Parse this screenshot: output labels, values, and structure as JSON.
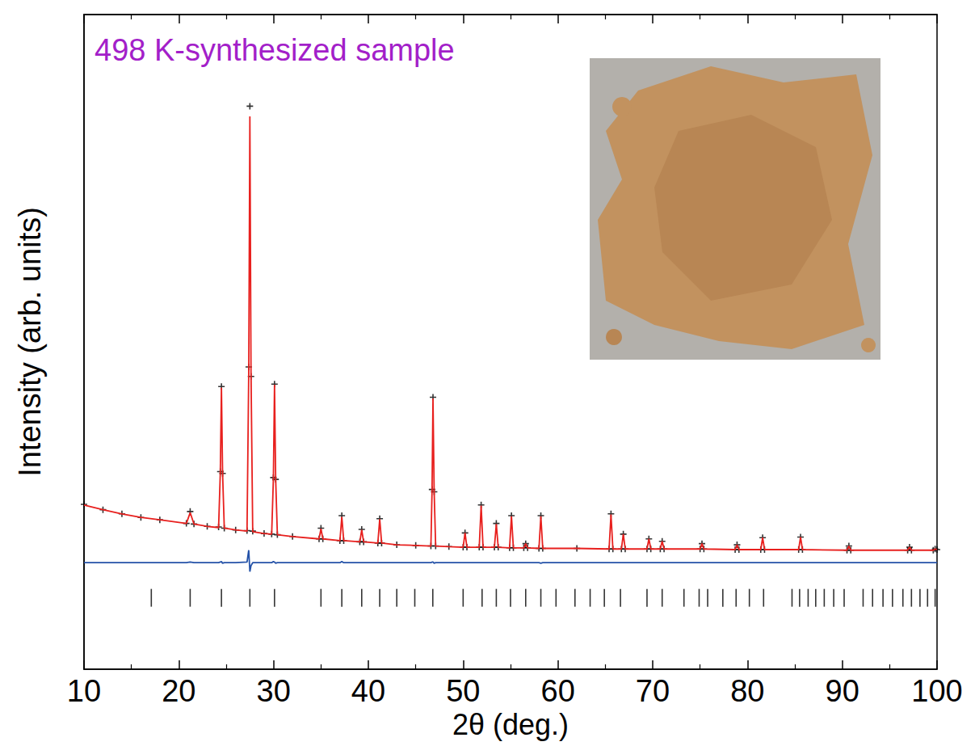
{
  "chart_data": {
    "type": "line",
    "title": "498 K-synthesized sample",
    "x_label": "2θ (deg.)",
    "y_label": "Intensity (arb. units)",
    "xlim": [
      10,
      100
    ],
    "xticks": [
      10,
      20,
      30,
      40,
      50,
      60,
      70,
      80,
      90,
      100
    ],
    "ylim": [
      0,
      110
    ],
    "yticks": [],
    "grid": false,
    "tick_labels": "x",
    "x": [
      10,
      12,
      14,
      16,
      18,
      20.8,
      21.2,
      21.6,
      23,
      24.2,
      24.38,
      24.5,
      24.62,
      24.8,
      26,
      27.2,
      27.38,
      27.5,
      27.62,
      27.8,
      29,
      29.8,
      29.98,
      30.1,
      30.22,
      30.4,
      32,
      34.8,
      35,
      35.2,
      37,
      37.2,
      37.4,
      39.1,
      39.3,
      39.5,
      41,
      41.2,
      41.4,
      43,
      45,
      46.6,
      46.72,
      46.82,
      46.94,
      47.1,
      48.5,
      50,
      50.2,
      50.4,
      51.7,
      51.9,
      52.1,
      53.3,
      53.5,
      53.7,
      54.9,
      55.1,
      55.3,
      56.4,
      56.6,
      56.8,
      58,
      58.2,
      58.4,
      62,
      65.4,
      65.6,
      65.8,
      66.7,
      66.9,
      67.1,
      69.4,
      69.6,
      69.8,
      70.8,
      71,
      71.2,
      75,
      75.2,
      75.4,
      78.7,
      78.9,
      79.1,
      81.4,
      81.6,
      81.8,
      85.4,
      85.6,
      85.8,
      90.5,
      90.7,
      90.9,
      96.9,
      97.1,
      97.3,
      99.6,
      99.8,
      100
    ],
    "series": [
      {
        "type": "scatter",
        "color": "#000000",
        "marker": "plus",
        "values": [
          27.7,
          26.8,
          26.1,
          25.5,
          25.1,
          24.5,
          26.5,
          24.4,
          24.0,
          23.9,
          33.2,
          47.5,
          32.9,
          23.7,
          23.4,
          23.3,
          50.8,
          94.6,
          49.2,
          23.2,
          22.8,
          22.7,
          32.2,
          47.9,
          31.9,
          22.6,
          22.3,
          21.9,
          23.7,
          21.9,
          21.6,
          25.8,
          21.6,
          21.4,
          23.5,
          21.4,
          21.2,
          25.3,
          21.2,
          20.9,
          20.8,
          20.7,
          30.2,
          45.7,
          29.8,
          20.7,
          20.6,
          20.5,
          22.9,
          20.5,
          20.5,
          27.6,
          20.5,
          20.5,
          24.5,
          20.5,
          20.4,
          25.8,
          20.4,
          20.4,
          21.1,
          20.4,
          20.3,
          25.8,
          20.3,
          20.3,
          20.2,
          26.1,
          20.2,
          20.2,
          22.7,
          20.2,
          20.2,
          21.9,
          20.2,
          20.2,
          21.5,
          20.2,
          20.2,
          21.1,
          20.2,
          20.1,
          20.9,
          20.1,
          20.1,
          22.1,
          20.1,
          20.1,
          22.2,
          20.1,
          20.0,
          20.7,
          20.0,
          20.0,
          20.5,
          20.0,
          20.0,
          20.2,
          20.1
        ]
      },
      {
        "type": "line",
        "color": "#e8201e",
        "line_style": "solid",
        "values": [
          27.6,
          26.8,
          26.1,
          25.5,
          25.1,
          24.5,
          26.3,
          24.4,
          24.0,
          23.8,
          33.0,
          47.3,
          33.0,
          23.7,
          23.4,
          23.2,
          50.0,
          92.9,
          50.0,
          23.1,
          22.8,
          22.7,
          32.0,
          47.8,
          32.0,
          22.6,
          22.3,
          21.9,
          23.6,
          21.9,
          21.6,
          25.6,
          21.6,
          21.4,
          23.4,
          21.4,
          21.2,
          25.2,
          21.2,
          20.9,
          20.8,
          20.7,
          30.0,
          45.5,
          30.0,
          20.7,
          20.6,
          20.5,
          22.9,
          20.5,
          20.5,
          27.5,
          20.5,
          20.5,
          24.4,
          20.5,
          20.4,
          25.7,
          20.4,
          20.4,
          21.1,
          20.4,
          20.3,
          25.7,
          20.3,
          20.3,
          20.2,
          26.0,
          20.2,
          20.2,
          22.7,
          20.2,
          20.2,
          21.9,
          20.2,
          20.2,
          21.5,
          20.2,
          20.2,
          21.1,
          20.2,
          20.1,
          20.9,
          20.1,
          20.1,
          22.1,
          20.1,
          20.1,
          22.2,
          20.1,
          20.0,
          20.7,
          20.0,
          20.0,
          20.5,
          20.0,
          20.0,
          20.2,
          20.1
        ]
      },
      {
        "type": "line",
        "color": "#2452a8",
        "line_style": "solid",
        "values": [
          17.9,
          17.9,
          17.9,
          17.9,
          17.9,
          17.9,
          18.0,
          17.9,
          17.9,
          17.9,
          18.0,
          18.1,
          17.8,
          17.9,
          17.9,
          18.0,
          20.0,
          16.4,
          17.4,
          17.9,
          17.9,
          17.9,
          18.1,
          18.0,
          17.8,
          17.9,
          17.9,
          17.9,
          17.9,
          17.9,
          17.9,
          18.1,
          17.9,
          17.9,
          17.9,
          17.9,
          17.9,
          17.9,
          17.9,
          17.9,
          17.9,
          17.9,
          18.0,
          18.0,
          17.8,
          17.9,
          17.9,
          17.9,
          17.9,
          17.9,
          17.9,
          17.9,
          17.9,
          17.9,
          17.9,
          17.9,
          17.9,
          17.9,
          17.9,
          17.9,
          17.9,
          17.9,
          17.9,
          17.8,
          17.9,
          17.9,
          17.9,
          17.9,
          17.9,
          17.9,
          17.9,
          17.9,
          17.9,
          17.9,
          17.9,
          17.9,
          17.9,
          17.9,
          17.9,
          17.9,
          17.9,
          17.9,
          17.9,
          17.9,
          17.9,
          17.9,
          17.9,
          17.9,
          17.9,
          17.9,
          17.9,
          17.9,
          17.9,
          17.9,
          17.9,
          17.9,
          17.9,
          17.9,
          17.9
        ]
      },
      {
        "type": "scatter",
        "color": "#000000",
        "marker": "vline",
        "x": [
          17.1,
          21.2,
          24.5,
          27.5,
          30.1,
          35,
          37.2,
          39.3,
          41.2,
          43,
          44.9,
          46.8,
          50,
          52,
          53.5,
          55,
          56.6,
          58.2,
          59.8,
          61.8,
          63.4,
          64.9,
          66.6,
          69.4,
          71,
          73.3,
          74.9,
          75.8,
          77.4,
          78.8,
          80.2,
          81.7,
          84.7,
          85.5,
          86.4,
          87.2,
          88.1,
          89.1,
          90.2,
          92.2,
          93.2,
          94.3,
          95.3,
          96.4,
          97.3,
          98.2,
          99,
          99.8
        ],
        "values": [
          12,
          12,
          12,
          12,
          12,
          12,
          12,
          12,
          12,
          12,
          12,
          12,
          12,
          12,
          12,
          12,
          12,
          12,
          12,
          12,
          12,
          12,
          12,
          12,
          12,
          12,
          12,
          12,
          12,
          12,
          12,
          12,
          12,
          12,
          12,
          12,
          12,
          12,
          12,
          12,
          12,
          12,
          12,
          12,
          12,
          12,
          12,
          12
        ]
      }
    ]
  }
}
